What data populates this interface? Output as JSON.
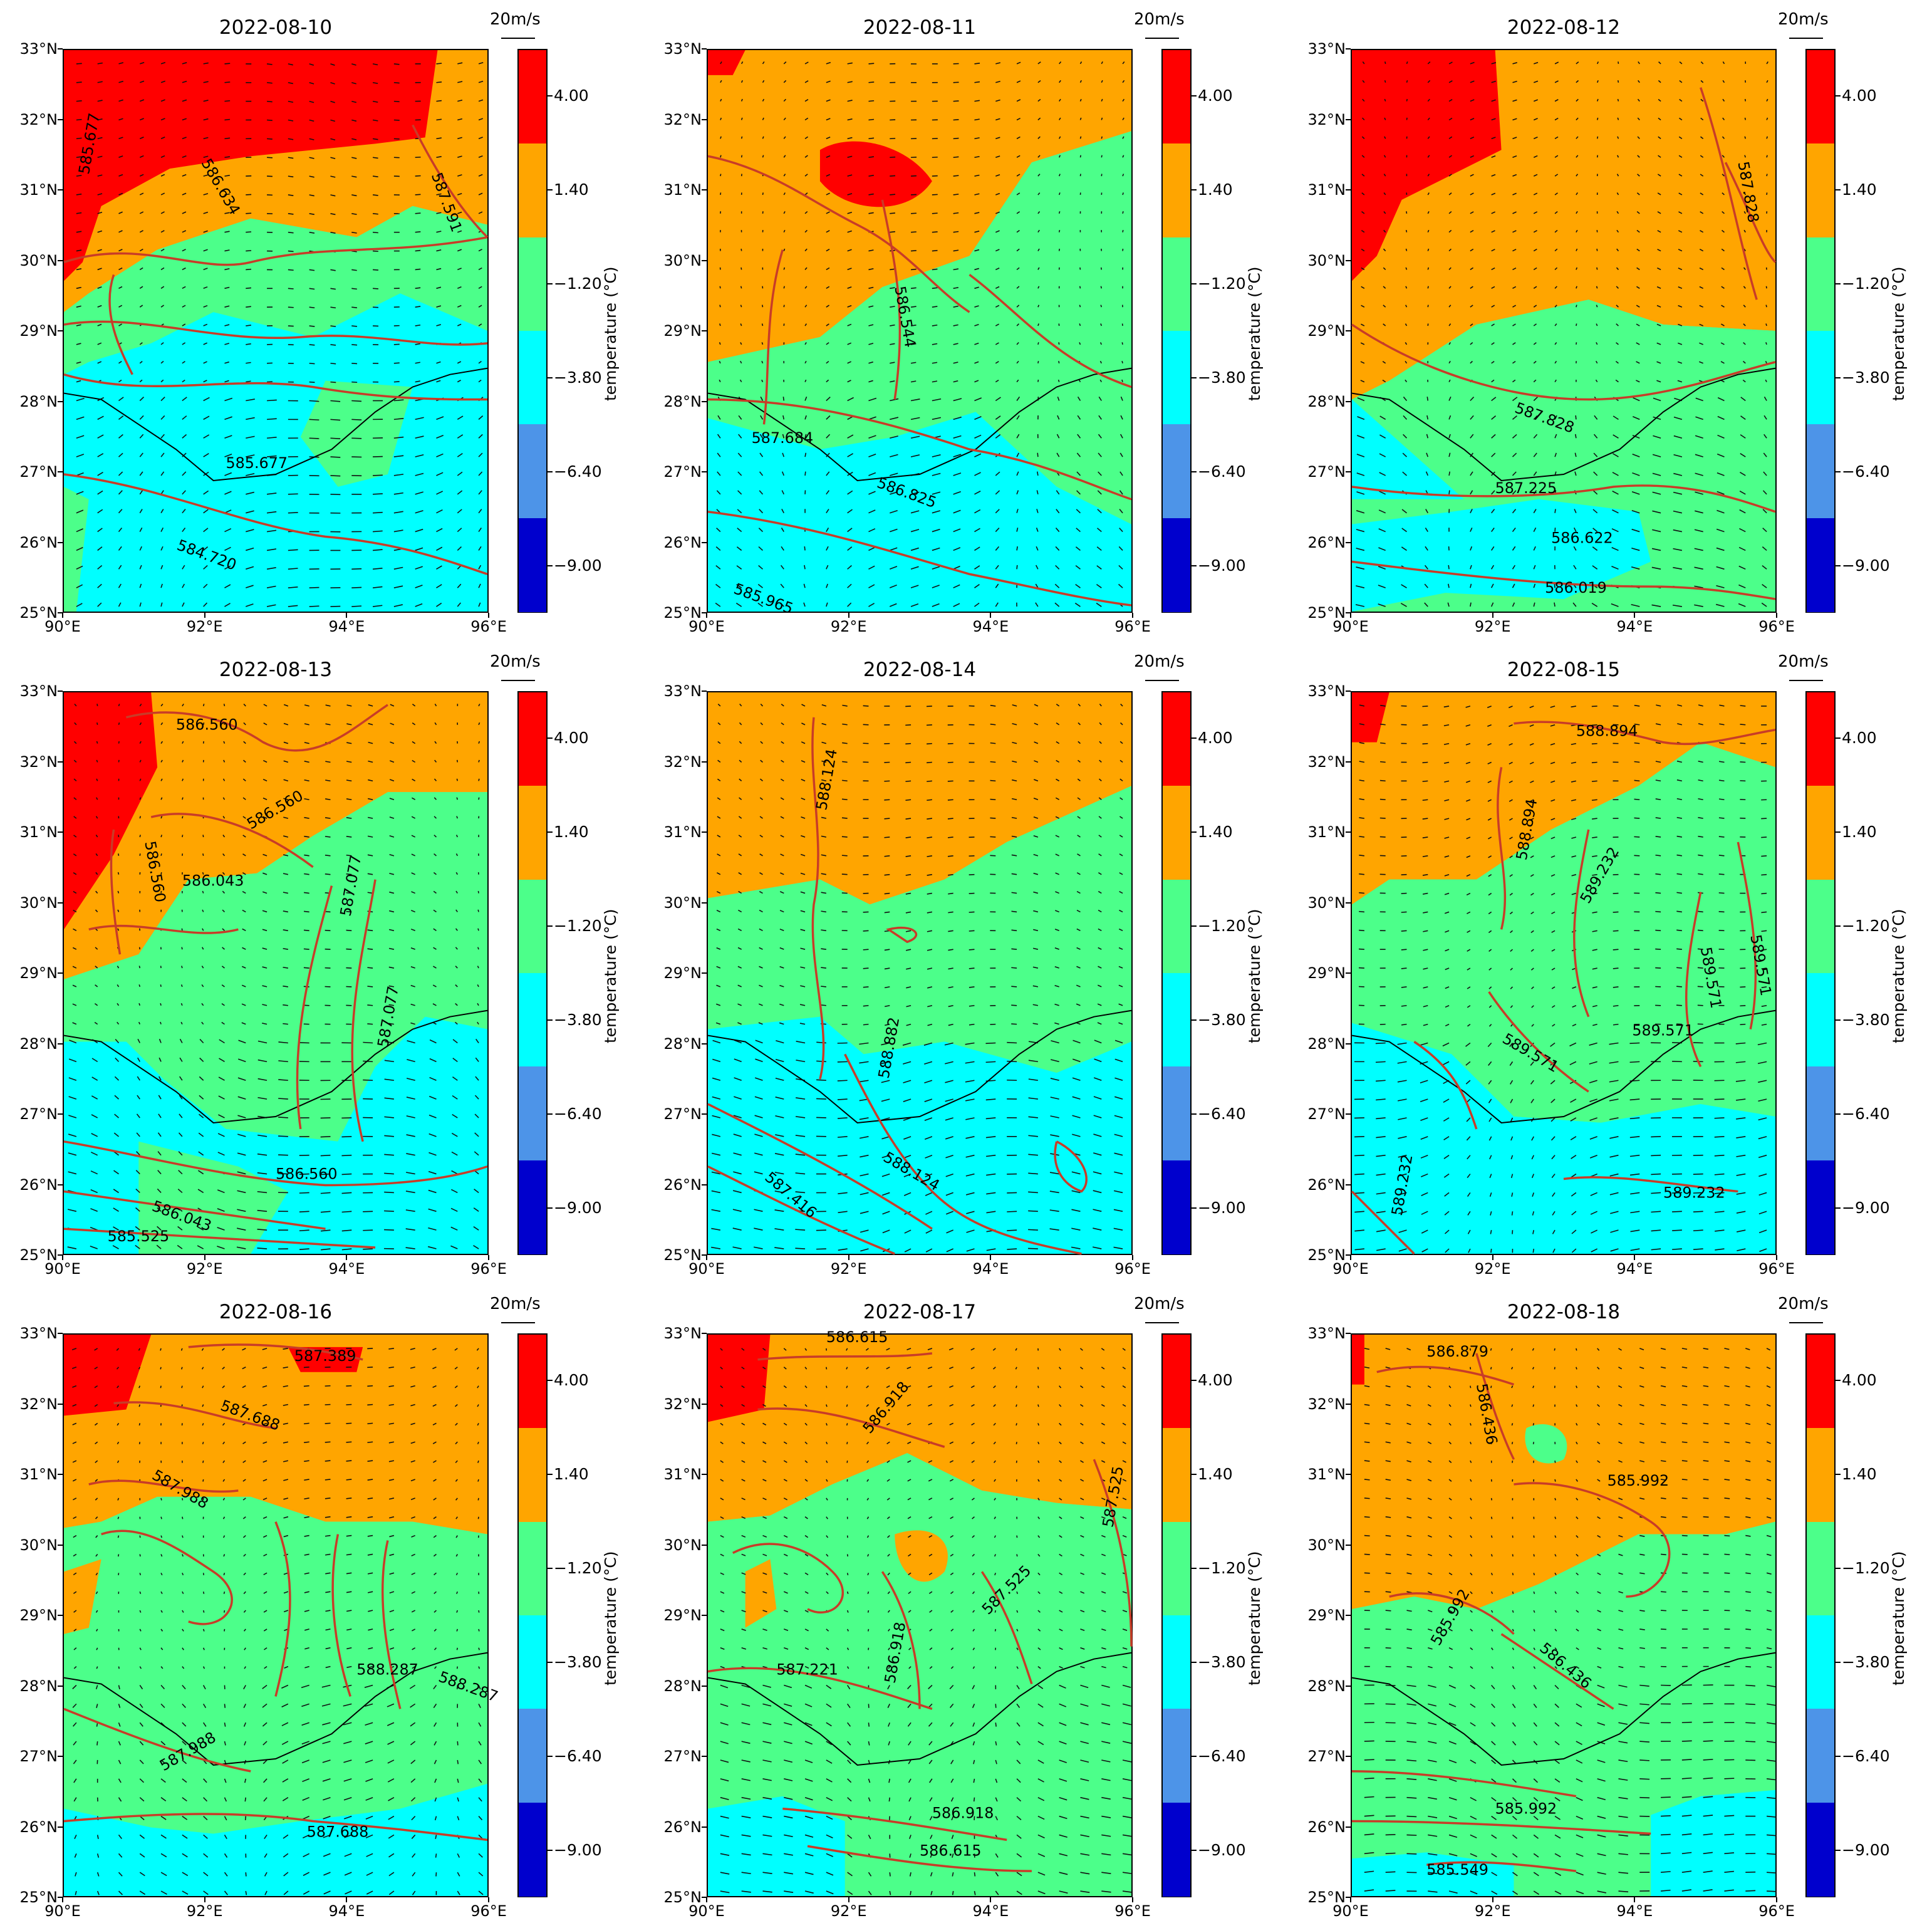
{
  "panels": [
    {
      "date": "2022-08-10",
      "contours": [
        "587.591",
        "585.677",
        "586.634",
        "585.677",
        "584.720"
      ]
    },
    {
      "date": "2022-08-11",
      "contours": [
        "586.544",
        "587.684",
        "586.825",
        "585.965"
      ]
    },
    {
      "date": "2022-08-12",
      "contours": [
        "587.828",
        "587.828",
        "587.225",
        "586.622",
        "586.019"
      ]
    },
    {
      "date": "2022-08-13",
      "contours": [
        "586.560",
        "586.560",
        "586.560",
        "586.043",
        "587.077",
        "587.077",
        "586.560",
        "586.043",
        "585.525"
      ]
    },
    {
      "date": "2022-08-14",
      "contours": [
        "588.124",
        "588.882",
        "588.124",
        "587.416"
      ]
    },
    {
      "date": "2022-08-15",
      "contours": [
        "588.894",
        "588.894",
        "589.232",
        "589.571",
        "589.571",
        "589.571",
        "589.571",
        "589.232",
        "589.232"
      ]
    },
    {
      "date": "2022-08-16",
      "contours": [
        "587.389",
        "587.688",
        "587.988",
        "588.287",
        "588.287",
        "587.988",
        "587.688"
      ]
    },
    {
      "date": "2022-08-17",
      "contours": [
        "586.615",
        "586.918",
        "587.525",
        "587.221",
        "586.918",
        "587.525",
        "586.918",
        "586.615"
      ]
    },
    {
      "date": "2022-08-18",
      "contours": [
        "586.879",
        "586.436",
        "585.992",
        "585.992",
        "586.436",
        "585.992",
        "585.549"
      ]
    }
  ],
  "lat_ticks": [
    "33°N",
    "32°N",
    "31°N",
    "30°N",
    "29°N",
    "28°N",
    "27°N",
    "26°N",
    "25°N"
  ],
  "lon_ticks": [
    "90°E",
    "92°E",
    "94°E",
    "96°E"
  ],
  "colorbar": {
    "labels": [
      "4.00",
      "1.40",
      "−1.20",
      "−3.80",
      "−6.40",
      "−9.00"
    ],
    "colors": [
      "#ff0000",
      "#ffa500",
      "#4cff8a",
      "#00ffff",
      "#4d94e8",
      "#0000cd"
    ],
    "unit": "temperature (°C)"
  },
  "wind_reference": "20m/s"
}
